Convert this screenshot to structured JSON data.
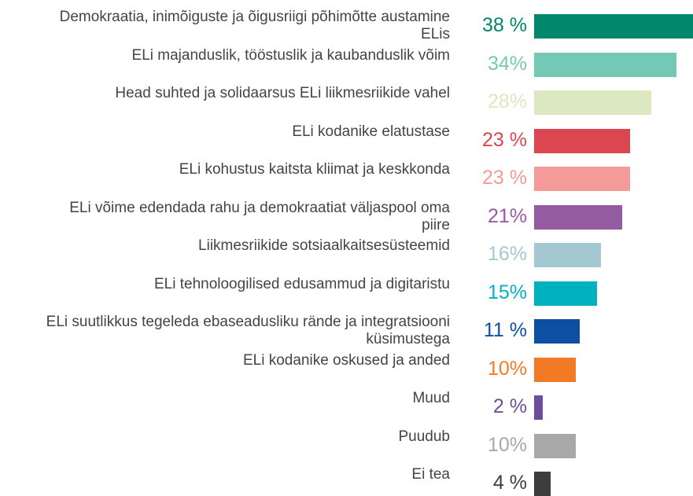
{
  "chart_data": {
    "type": "bar",
    "orientation": "horizontal",
    "categories": [
      "Demokraatia, inimõiguste ja õigusriigi põhimõtte austamine ELis",
      "ELi majanduslik, tööstuslik ja kaubanduslik võim",
      "Head suhted ja solidaarsus ELi liikmesriikide vahel",
      "ELi kodanike elatustase",
      "ELi kohustus kaitsta kliimat ja keskkonda",
      "ELi võime edendada rahu ja demokraatiat väljaspool oma piire",
      "Liikmesriikide sotsiaalkaitsesüsteemid",
      "ELi tehnoloogilised edusammud ja digitaristu",
      "ELi suutlikkus tegeleda ebaseadusliku rände ja integratsiooni küsimustega",
      "ELi kodanike oskused ja anded",
      "Muud",
      "Puudub",
      "Ei tea"
    ],
    "values": [
      38,
      34,
      28,
      23,
      23,
      21,
      16,
      15,
      11,
      10,
      2,
      10,
      4
    ],
    "value_labels": [
      "38 %",
      "34%",
      "28%",
      "23 %",
      "23 %",
      "21%",
      "16%",
      "15%",
      "11 %",
      "10%",
      "2 %",
      "10%",
      "4 %"
    ],
    "colors": [
      "#00876c",
      "#74c9b4",
      "#dce9c0",
      "#dc4650",
      "#f49a98",
      "#945ba0",
      "#a4c8d1",
      "#00b2bf",
      "#0d4fa3",
      "#f27a24",
      "#6e4e9c",
      "#a8a8a8",
      "#3d3d3d"
    ]
  }
}
